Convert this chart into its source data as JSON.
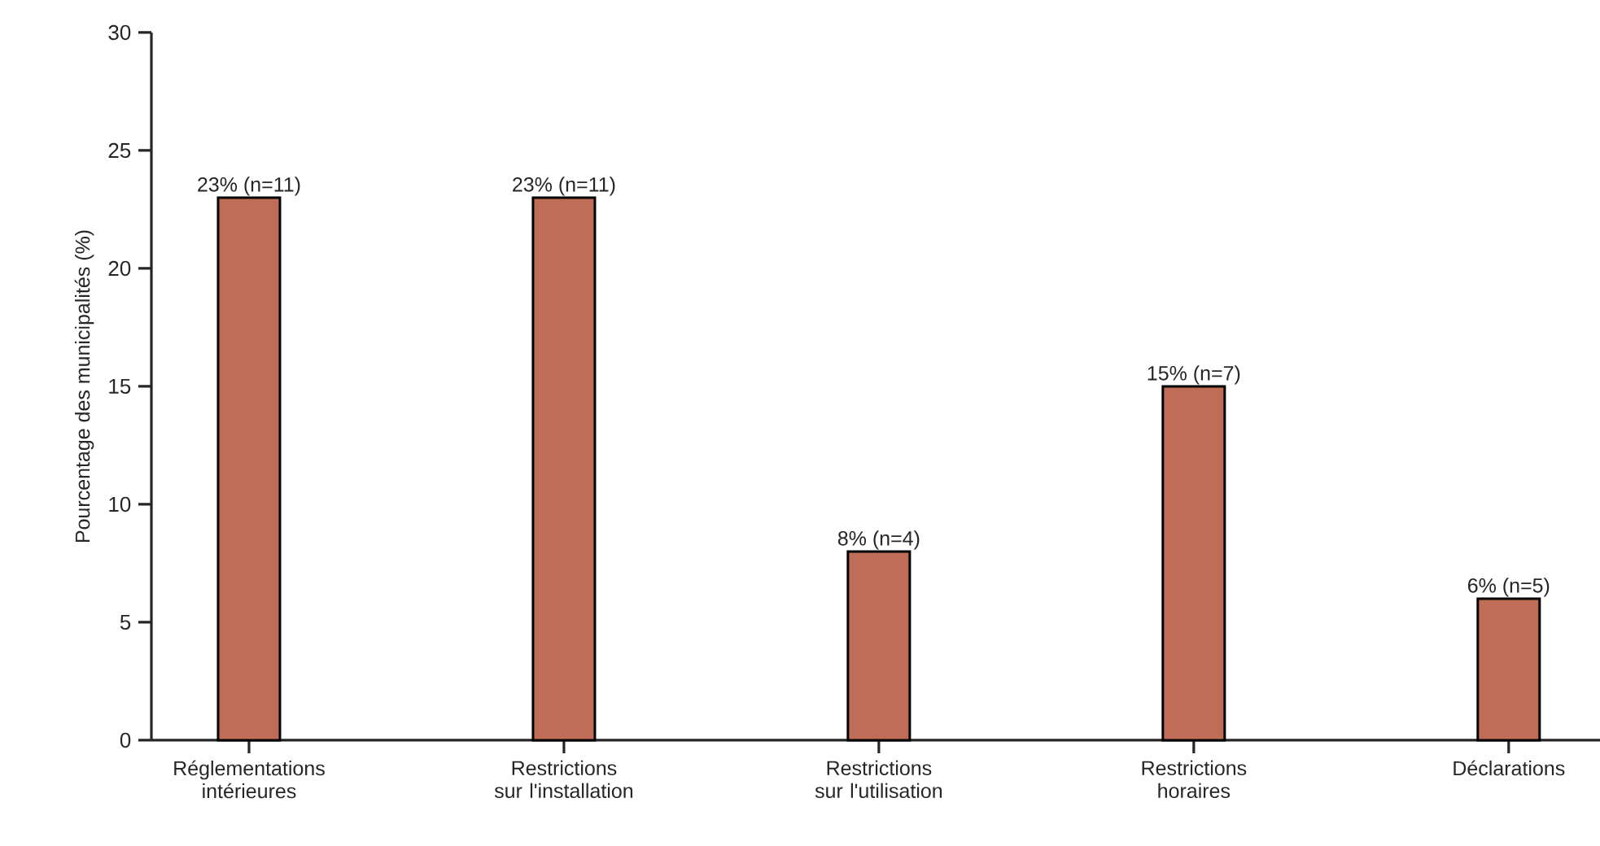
{
  "chart_data": {
    "type": "bar",
    "ylabel": "Pourcentage des municipalités (%)",
    "categories": [
      "Réglementations intérieures",
      "Restrictions sur l'installation",
      "Restrictions sur l'utilisation",
      "Restrictions horaires",
      "Déclarations"
    ],
    "values": [
      23,
      23,
      8,
      15,
      6
    ],
    "value_labels": [
      "23% (n=11)",
      "23% (n=11)",
      "8% (n=4)",
      "15% (n=7)",
      "6% (n=5)"
    ],
    "color": "#bf6d57",
    "ylim": [
      0,
      30
    ],
    "yticks": [
      0,
      5,
      10,
      15,
      20,
      25,
      30
    ]
  }
}
